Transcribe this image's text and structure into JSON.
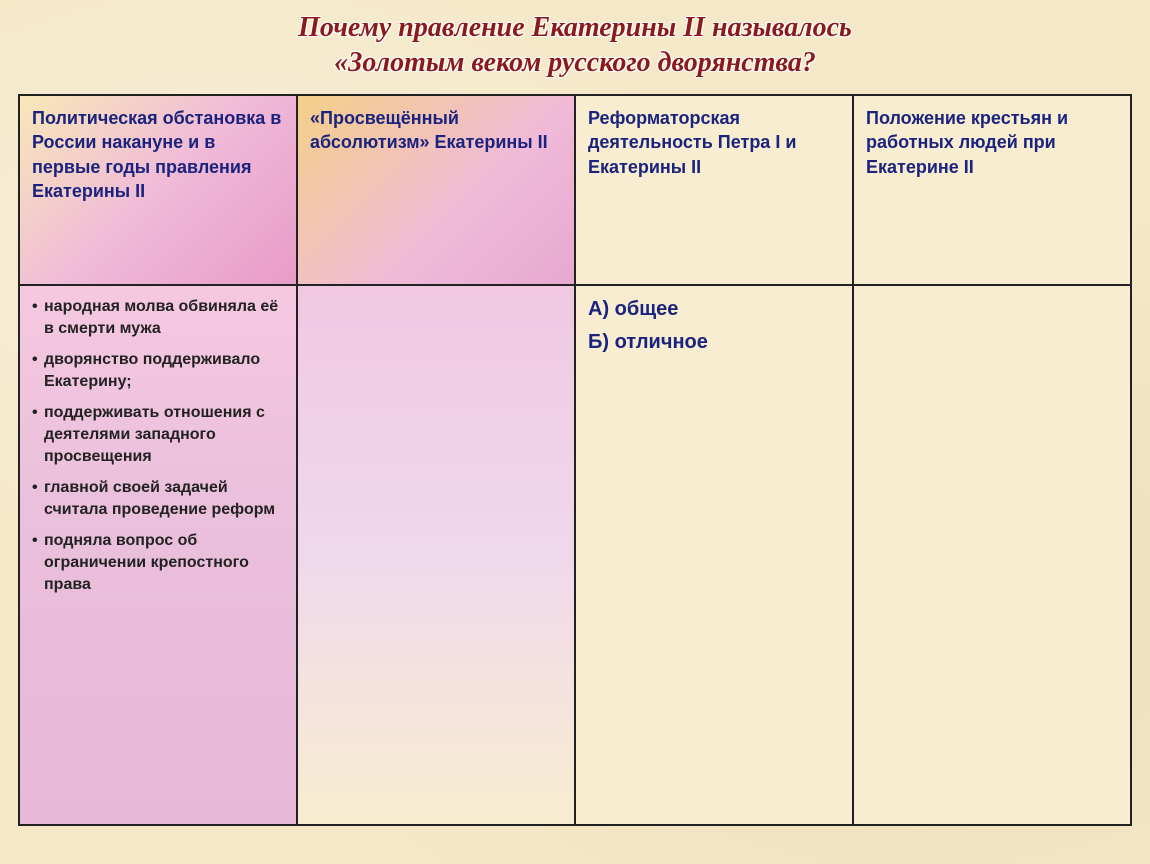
{
  "title_line1": "Почему правление Екатерины II называлось",
  "title_line2": "«Золотым веком русского дворянства?",
  "headers": {
    "col1": "Политическая обстановка в России накануне и в первые годы правления Екатерины II",
    "col2": "«Просвещённый абсолютизм» Екатерины II",
    "col3": "Реформаторская деятельность Петра I и Екатерины II",
    "col4": "Положение крестьян и работных людей при Екатерине II"
  },
  "col1_items": [
    "народная молва обвиняла её в смерти мужа",
    "дворянство поддерживало Екатерину;",
    "поддерживать отношения с деятелями западного просвещения",
    "главной своей задачей считала проведение реформ",
    "подняла вопрос об ограничении крепостного права"
  ],
  "col3_answers": {
    "a": "А) общее",
    "b": "Б) отличное"
  }
}
